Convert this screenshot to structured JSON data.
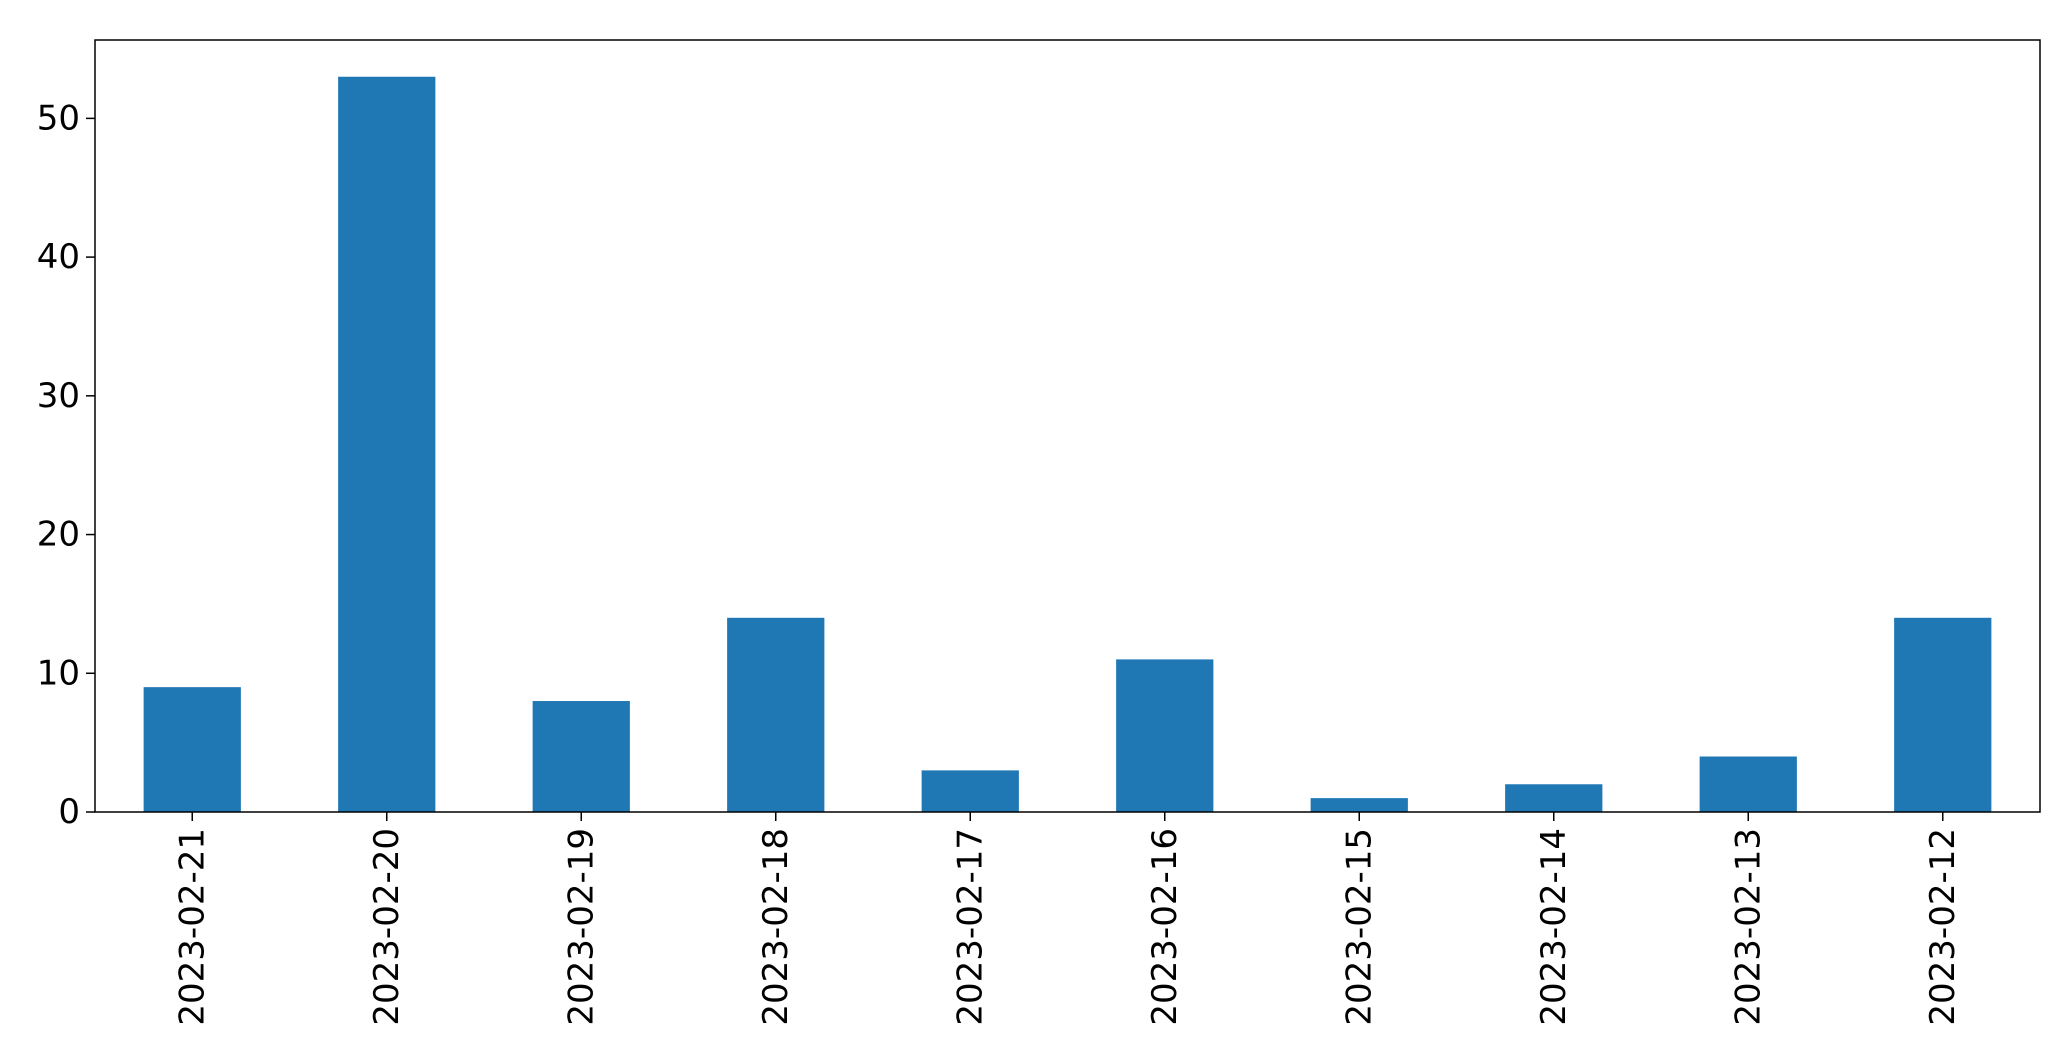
{
  "chart_data": {
    "type": "bar",
    "categories": [
      "2023-02-21",
      "2023-02-20",
      "2023-02-19",
      "2023-02-18",
      "2023-02-17",
      "2023-02-16",
      "2023-02-15",
      "2023-02-14",
      "2023-02-13",
      "2023-02-12"
    ],
    "values": [
      9,
      53,
      8,
      14,
      3,
      11,
      1,
      2,
      4,
      14
    ],
    "ylim": [
      0,
      55.65
    ],
    "yticks": [
      0,
      10,
      20,
      30,
      40,
      50
    ],
    "title": "",
    "xlabel": "",
    "ylabel": "",
    "bar_color": "#1f77b4",
    "grid": false,
    "legend": "none"
  }
}
